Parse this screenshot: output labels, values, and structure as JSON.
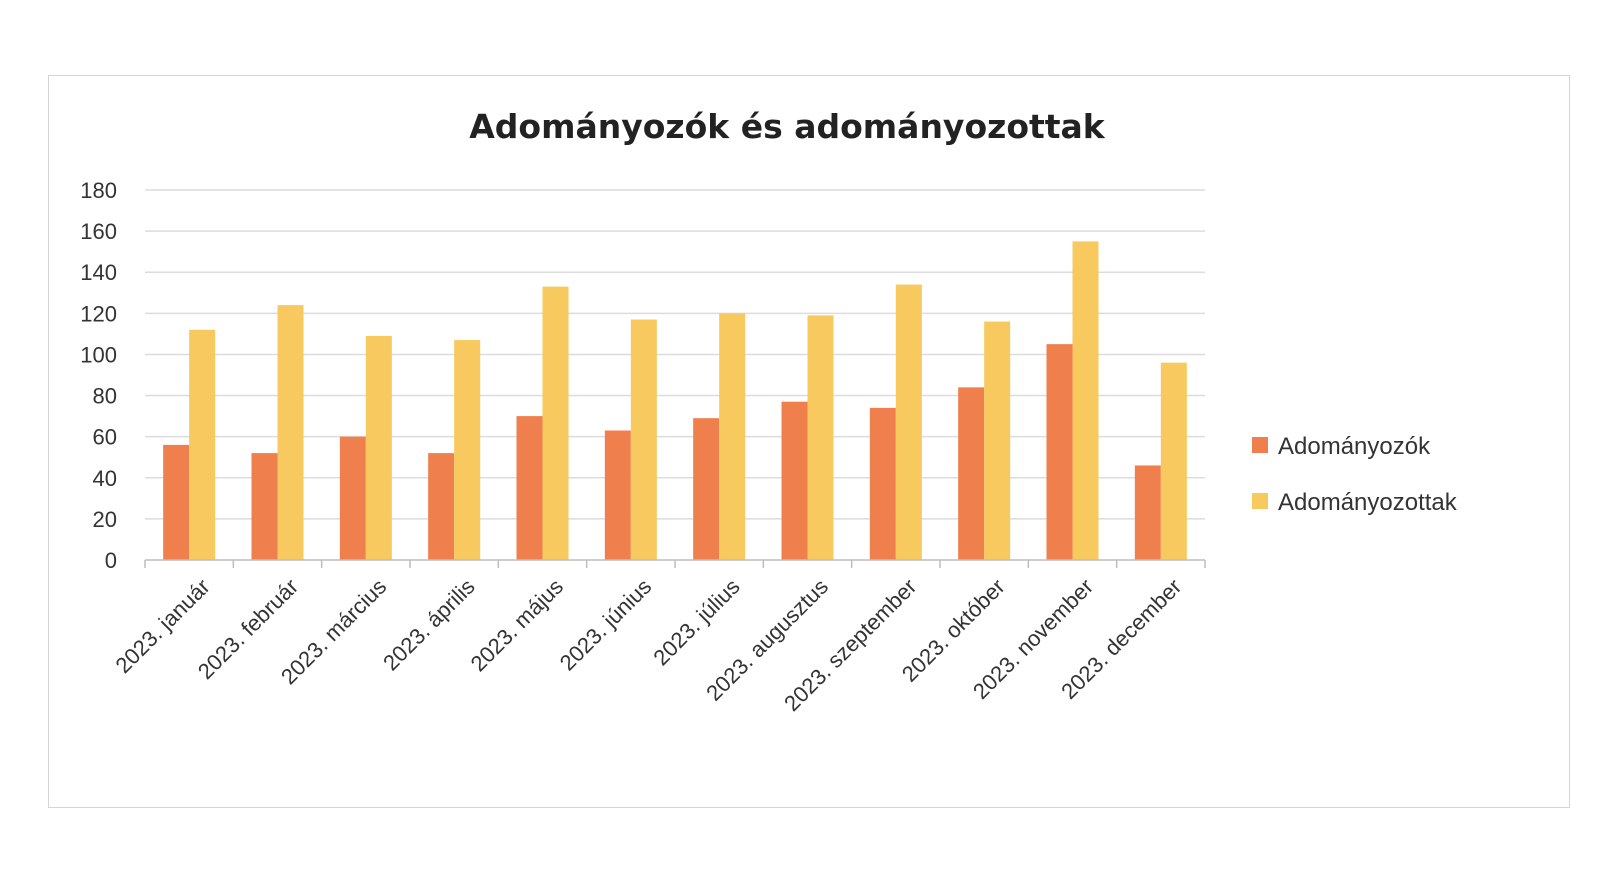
{
  "chart_data": {
    "type": "bar",
    "title": "Adományozók és adományozottak",
    "categories": [
      "2023. január",
      "2023. február",
      "2023. március",
      "2023. április",
      "2023. május",
      "2023. június",
      "2023. július",
      "2023. augusztus",
      "2023. szeptember",
      "2023. október",
      "2023. november",
      "2023. december"
    ],
    "series": [
      {
        "name": "Adományozók",
        "color": "#f07f4e",
        "values": [
          56,
          52,
          60,
          52,
          70,
          63,
          69,
          77,
          74,
          84,
          105,
          46
        ]
      },
      {
        "name": "Adományozottak",
        "color": "#f7c95e",
        "values": [
          112,
          124,
          109,
          107,
          133,
          117,
          120,
          119,
          134,
          116,
          155,
          96
        ]
      }
    ],
    "ylim": [
      0,
      180
    ],
    "yticks": [
      0,
      20,
      40,
      60,
      80,
      100,
      120,
      140,
      160,
      180
    ],
    "grid": true,
    "legend_position": "right"
  }
}
